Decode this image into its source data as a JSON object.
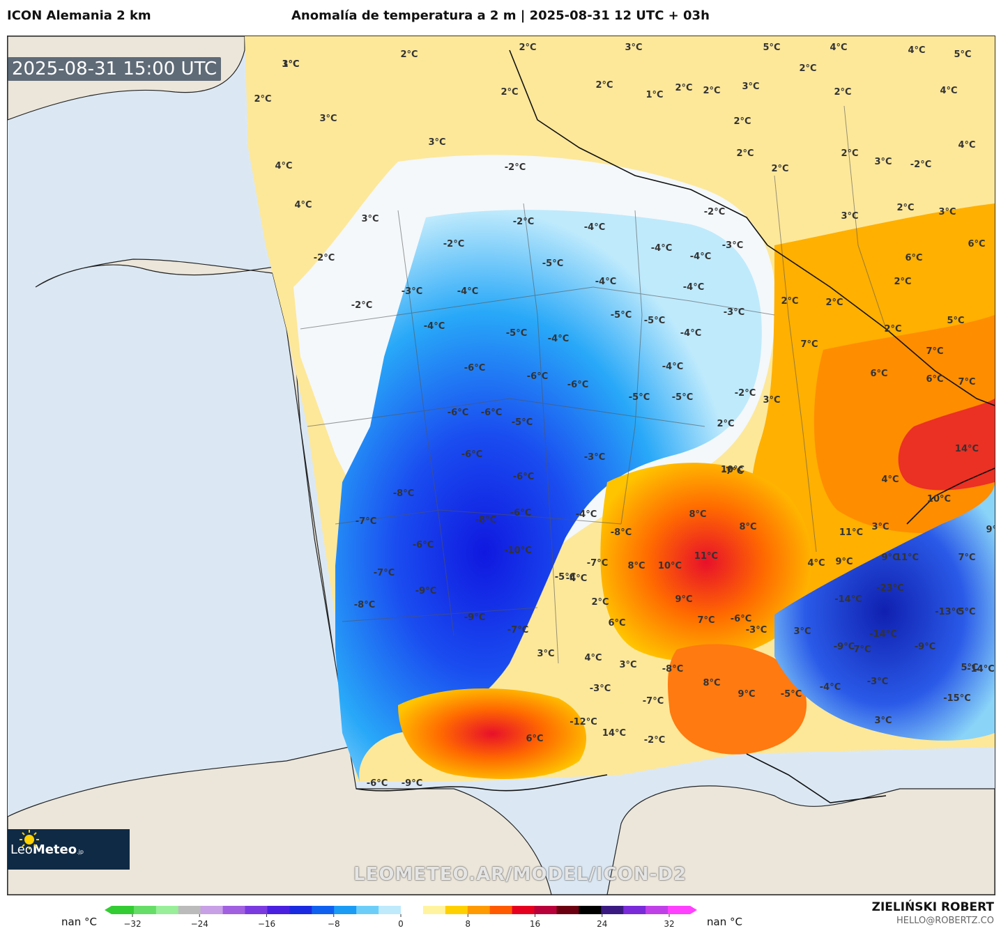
{
  "header": {
    "model": "ICON Alemania 2 km",
    "title": "Anomalía de temperatura a 2 m | 2025-08-31 12 UTC + 03h"
  },
  "map": {
    "timestamp": "2025-08-31 15:00 UTC",
    "watermark": "LEOMETEO.AR/MODEL/ICON-D2",
    "logo": {
      "brand_light": "Leo",
      "brand_bold": "Meteo",
      "suffix": ".jp"
    },
    "labels": [
      "1°C",
      "2°C",
      "2°C",
      "3°C",
      "2°C",
      "3°C",
      "4°C",
      "4°C",
      "3°C",
      "-2°C",
      "2°C",
      "3°C",
      "5°C",
      "4°C",
      "4°C",
      "5°C",
      "2°C",
      "1°C",
      "2°C",
      "2°C",
      "3°C",
      "2°C",
      "2°C",
      "4°C",
      "2°C",
      "2°C",
      "2°C",
      "3°C",
      "-2°C",
      "2°C",
      "2°C",
      "3°C",
      "3°C",
      "4°C",
      "6°C",
      "6°C",
      "5°C",
      "2°C",
      "2°C",
      "2°C",
      "2°C",
      "7°C",
      "7°C",
      "6°C",
      "6°C",
      "7°C",
      "3°C",
      "-2°C",
      "2°C",
      "-2°C",
      "-2°C",
      "-2°C",
      "-2°C",
      "-2°C",
      "-3°C",
      "-4°C",
      "-4°C",
      "-4°C",
      "-5°C",
      "-4°C",
      "-4°C",
      "-3°C",
      "-3°C",
      "-4°C",
      "-4°C",
      "-5°C",
      "-5°C",
      "-5°C",
      "-4°C",
      "-4°C",
      "-6°C",
      "-6°C",
      "-6°C",
      "-5°C",
      "-4°C",
      "-5°C",
      "-6°C",
      "-6°C",
      "-5°C",
      "-6°C",
      "-3°C",
      "-6°C",
      "-8°C",
      "-7°C",
      "-8°C",
      "-6°C",
      "-6°C",
      "-10°C",
      "-7°C",
      "-9°C",
      "-8°C",
      "-9°C",
      "-7°C",
      "-4°C",
      "-7°C",
      "-5°C",
      "-4°C",
      "2°C",
      "-8°C",
      "8°C",
      "8°C",
      "8°C",
      "11°C",
      "10°C",
      "9°C",
      "6°C",
      "4°C",
      "3°C",
      "9°C",
      "11°C",
      "9°C",
      "10°C",
      "10°C",
      "14°C",
      "4°C",
      "11°C",
      "9°C",
      "7°C",
      "-23°C",
      "-13°C",
      "5°C",
      "-14°C",
      "7°C",
      "7°C",
      "-6°C",
      "-3°C",
      "3°C",
      "-9°C",
      "-14°C",
      "-9°C",
      "-14°C",
      "3°C",
      "4°C",
      "3°C",
      "-8°C",
      "-3°C",
      "-7°C",
      "8°C",
      "9°C",
      "-5°C",
      "-4°C",
      "-3°C",
      "-15°C",
      "-12°C",
      "6°C",
      "14°C",
      "-2°C",
      "3°C",
      "-6°C",
      "-9°C",
      "-7°C",
      "5°C",
      "3°C"
    ]
  },
  "legend": {
    "min_label": "nan °C",
    "max_label": "nan °C",
    "ticks": [
      "-32",
      "-24",
      "-16",
      "-8",
      "0",
      "8",
      "16",
      "24",
      "32"
    ],
    "colors": [
      "#33cc33",
      "#66dd66",
      "#99ee99",
      "#bbbbbb",
      "#c8a0e6",
      "#a060e0",
      "#7a3ae0",
      "#4b1fe0",
      "#1a2ae0",
      "#1060f0",
      "#1a9cf5",
      "#6ccef8",
      "#bfeafc",
      "#ffffff",
      "#fff3a0",
      "#ffd000",
      "#ff9a00",
      "#ff5a00",
      "#e60020",
      "#b8003a",
      "#6a0010",
      "#000000",
      "#3a1a80",
      "#7a2ad8",
      "#c040e8",
      "#ff40ff"
    ]
  },
  "author": {
    "name": "ZIELIŃSKI ROBERT",
    "email": "HELLO@ROBERTZ.CO"
  }
}
